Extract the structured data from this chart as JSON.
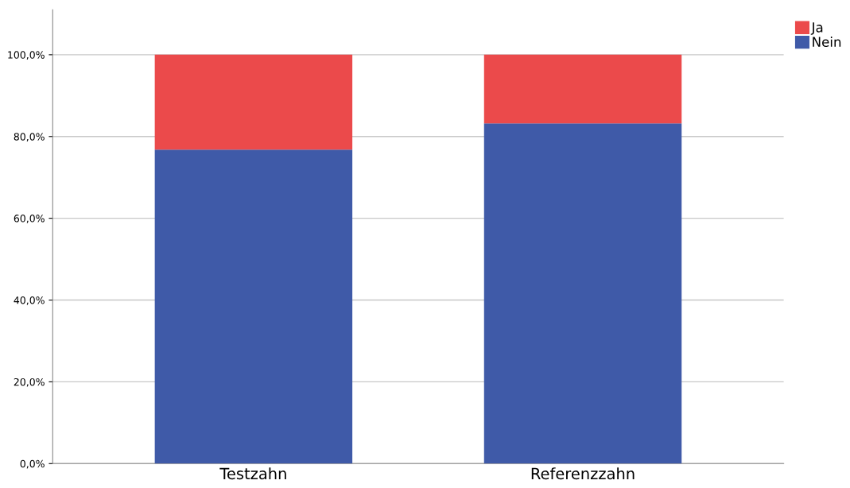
{
  "chart_data": {
    "type": "bar",
    "stacked": true,
    "categories": [
      "Testzahn",
      "Referenzzahn"
    ],
    "series": [
      {
        "name": "Nein",
        "color": "#3f5aa8",
        "values": [
          76.8,
          83.2
        ]
      },
      {
        "name": "Ja",
        "color": "#eb4a4b",
        "values": [
          23.2,
          16.8
        ]
      }
    ],
    "ylim": [
      0,
      111
    ],
    "yticks": [
      {
        "value": 0,
        "label": "0,0%"
      },
      {
        "value": 20,
        "label": "20,0%"
      },
      {
        "value": 40,
        "label": "40,0%"
      },
      {
        "value": 60,
        "label": "60,0%"
      },
      {
        "value": 80,
        "label": "80,0%"
      },
      {
        "value": 100,
        "label": "100,0%"
      }
    ],
    "grid": "y",
    "legend": "top right"
  }
}
